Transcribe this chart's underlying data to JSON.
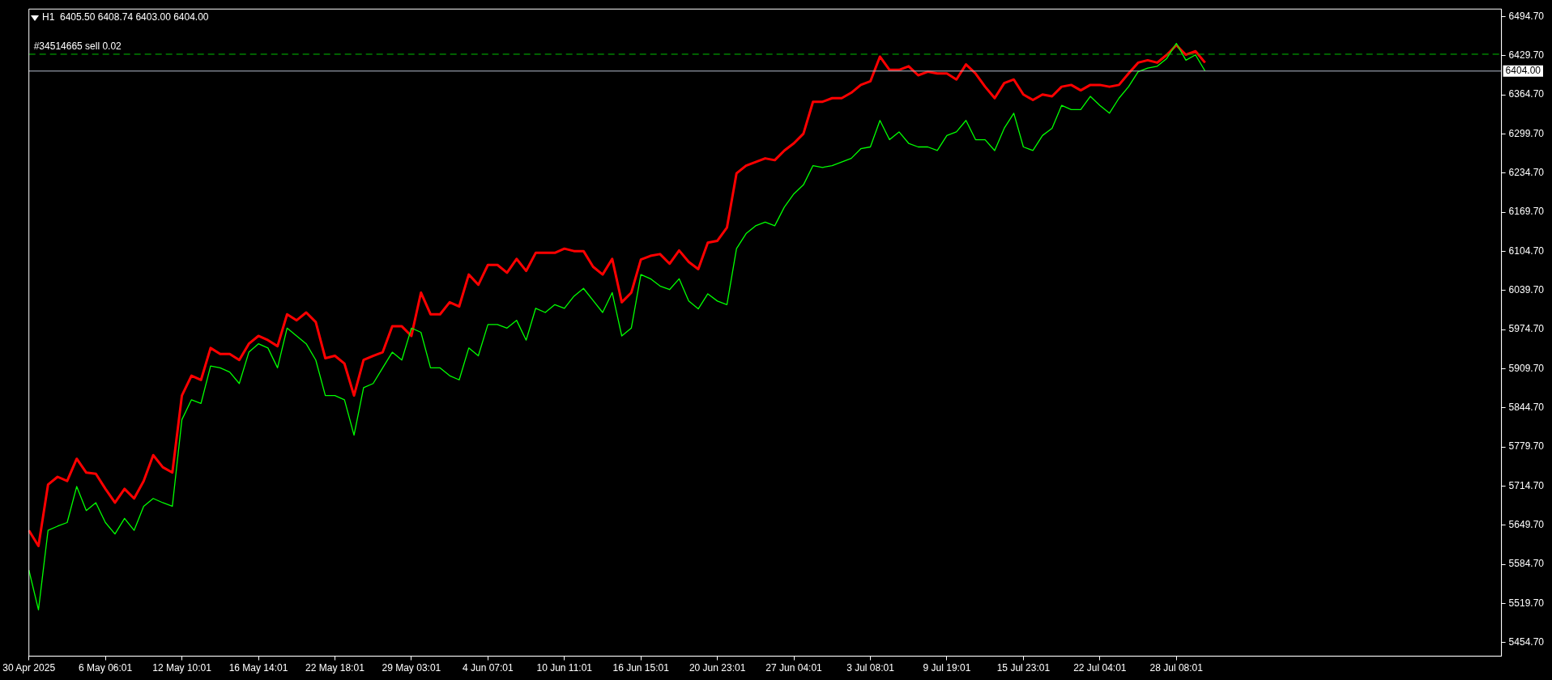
{
  "chart_data": {
    "type": "line",
    "title": "H1  6405.50 6408.74 6403.00 6404.00",
    "categories": [
      "30 Apr 2025",
      null,
      null,
      null,
      null,
      null,
      null,
      null,
      "6 May 06:01",
      null,
      null,
      null,
      null,
      null,
      null,
      null,
      "12 May 10:01",
      null,
      null,
      null,
      null,
      null,
      null,
      null,
      "16 May 14:01",
      null,
      null,
      null,
      null,
      null,
      null,
      null,
      "22 May 18:01",
      null,
      null,
      null,
      null,
      null,
      null,
      null,
      "29 May 03:01",
      null,
      null,
      null,
      null,
      null,
      null,
      null,
      "4 Jun 07:01",
      null,
      null,
      null,
      null,
      null,
      null,
      null,
      "10 Jun 11:01",
      null,
      null,
      null,
      null,
      null,
      null,
      null,
      "16 Jun 15:01",
      null,
      null,
      null,
      null,
      null,
      null,
      null,
      "20 Jun 23:01",
      null,
      null,
      null,
      null,
      null,
      null,
      null,
      "27 Jun 04:01",
      null,
      null,
      null,
      null,
      null,
      null,
      null,
      "3 Jul 08:01",
      null,
      null,
      null,
      null,
      null,
      null,
      null,
      "9 Jul 19:01",
      null,
      null,
      null,
      null,
      null,
      null,
      null,
      "15 Jul 23:01",
      null,
      null,
      null,
      null,
      null,
      null,
      null,
      "22 Jul 04:01",
      null,
      null,
      null,
      null,
      null,
      null,
      null,
      "28 Jul 08:01",
      null,
      null,
      null,
      null,
      null,
      null,
      null,
      null,
      null,
      null,
      null,
      null,
      null,
      null,
      null,
      null,
      null,
      null,
      null,
      null,
      null,
      null,
      null,
      null,
      null,
      null,
      null,
      null,
      null,
      null,
      null,
      null,
      null,
      null
    ],
    "series": [
      {
        "color": "#00ff00",
        "values": [
          5575,
          5509,
          5641,
          5648,
          5654,
          5714,
          5674,
          5687,
          5654,
          5635,
          5661,
          5641,
          5681,
          5694,
          5687,
          5681,
          5825,
          5858,
          5852,
          5914,
          5911,
          5904,
          5885,
          5937,
          5951,
          5944,
          5911,
          5977,
          5964,
          5951,
          5924,
          5865,
          5865,
          5858,
          5799,
          5878,
          5885,
          5911,
          5937,
          5924,
          5977,
          5970,
          5911,
          5911,
          5898,
          5891,
          5944,
          5931,
          5983,
          5983,
          5977,
          5990,
          5957,
          6010,
          6003,
          6016,
          6010,
          6030,
          6043,
          6023,
          6003,
          6036,
          5964,
          5977,
          6066,
          6059,
          6047,
          6041,
          6059,
          6022,
          6009,
          6034,
          6022,
          6016,
          6109,
          6134,
          6147,
          6153,
          6147,
          6178,
          6200,
          6215,
          6247,
          6244,
          6247,
          6253,
          6259,
          6275,
          6278,
          6322,
          6290,
          6303,
          6284,
          6278,
          6278,
          6272,
          6297,
          6303,
          6322,
          6290,
          6290,
          6272,
          6309,
          6334,
          6278,
          6272,
          6297,
          6309,
          6347,
          6340,
          6340,
          6362,
          6347,
          6334,
          6359,
          6378,
          6403,
          6409,
          6412,
          6425,
          6450,
          6422,
          6431,
          6404,
          null,
          null,
          null,
          null,
          null,
          null,
          null,
          null,
          null,
          null,
          null,
          null,
          null,
          null,
          null,
          null,
          null,
          null,
          null,
          null,
          null,
          null,
          null,
          null,
          null,
          null,
          null,
          null,
          null,
          null,
          null
        ]
      },
      {
        "color": "#ff0000",
        "values": [
          5641,
          5615,
          5717,
          5730,
          5723,
          5760,
          5737,
          5735,
          5710,
          5687,
          5710,
          5694,
          5723,
          5766,
          5746,
          5737,
          5865,
          5898,
          5891,
          5944,
          5934,
          5934,
          5924,
          5951,
          5964,
          5957,
          5947,
          6000,
          5990,
          6003,
          5987,
          5927,
          5931,
          5918,
          5865,
          5924,
          5931,
          5937,
          5980,
          5980,
          5964,
          6036,
          6000,
          6000,
          6020,
          6013,
          6066,
          6049,
          6082,
          6082,
          6069,
          6092,
          6072,
          6102,
          6102,
          6102,
          6109,
          6105,
          6105,
          6079,
          6066,
          6092,
          6020,
          6036,
          6091,
          6097,
          6100,
          6084,
          6106,
          6087,
          6075,
          6119,
          6122,
          6144,
          6234,
          6247,
          6253,
          6259,
          6256,
          6272,
          6284,
          6300,
          6353,
          6353,
          6359,
          6359,
          6368,
          6381,
          6387,
          6428,
          6406,
          6406,
          6412,
          6397,
          6403,
          6400,
          6400,
          6390,
          6415,
          6400,
          6378,
          6359,
          6384,
          6390,
          6365,
          6356,
          6365,
          6362,
          6378,
          6381,
          6372,
          6381,
          6381,
          6378,
          6381,
          6400,
          6418,
          6422,
          6418,
          6431,
          6447,
          6431,
          6437,
          6418,
          null,
          null,
          null,
          null,
          null,
          null,
          null,
          null,
          null,
          null,
          null,
          null,
          null,
          null,
          null,
          null,
          null,
          null,
          null,
          null,
          null,
          null,
          null,
          null,
          null,
          null,
          null,
          null,
          null,
          null,
          null
        ]
      }
    ],
    "ylim": [
      5432,
      6507
    ],
    "yticks": [
      {
        "value": 5454.7,
        "label": "5454.70"
      },
      {
        "value": 5519.7,
        "label": "5519.70"
      },
      {
        "value": 5584.7,
        "label": "5584.70"
      },
      {
        "value": 5649.7,
        "label": "5649.70"
      },
      {
        "value": 5714.7,
        "label": "5714.70"
      },
      {
        "value": 5779.7,
        "label": "5779.70"
      },
      {
        "value": 5844.7,
        "label": "5844.70"
      },
      {
        "value": 5909.7,
        "label": "5909.70"
      },
      {
        "value": 5974.7,
        "label": "5974.70"
      },
      {
        "value": 6039.7,
        "label": "6039.70"
      },
      {
        "value": 6104.7,
        "label": "6104.70"
      },
      {
        "value": 6169.7,
        "label": "6169.70"
      },
      {
        "value": 6234.7,
        "label": "6234.70"
      },
      {
        "value": 6299.7,
        "label": "6299.70"
      },
      {
        "value": 6364.7,
        "label": "6364.70"
      },
      {
        "value": 6429.7,
        "label": "6429.70"
      },
      {
        "value": 6494.7,
        "label": "6494.70"
      }
    ],
    "ref_lines": [
      {
        "axis": "y",
        "value": 6432,
        "label": "#34514665 sell 0.02",
        "color": "#00c000",
        "line_style": "dashed"
      },
      {
        "axis": "y",
        "value": 6404,
        "label": "6404.00",
        "color": "#b4bccc",
        "line_style": "solid"
      }
    ],
    "grid": false,
    "legend": false
  }
}
